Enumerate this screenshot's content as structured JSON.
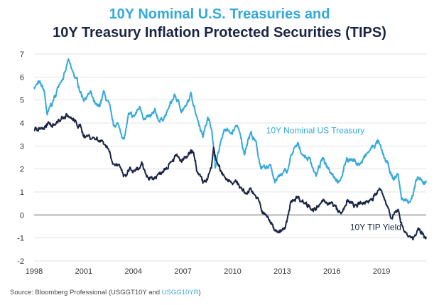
{
  "chart_data": {
    "type": "line",
    "title_line1": "10Y Nominal U.S. Treasuries and",
    "title_line2": "10Y Treasury Inflation Protected Securities (TIPS)",
    "xlim": [
      1998,
      2021.7
    ],
    "ylim": [
      -2,
      7
    ],
    "x_ticks": [
      "1998",
      "2001",
      "2004",
      "2007",
      "2010",
      "2013",
      "2016",
      "2019"
    ],
    "y_ticks": [
      "7",
      "6",
      "5",
      "4",
      "3",
      "2",
      "1",
      "0",
      "-1",
      "-2"
    ],
    "grid": "horizontal",
    "series": [
      {
        "name": "10Y Nominal US Treasury",
        "color": "#35a9dc",
        "points": [
          [
            1998.0,
            5.6
          ],
          [
            1998.3,
            5.7
          ],
          [
            1998.6,
            5.4
          ],
          [
            1998.8,
            4.3
          ],
          [
            1999.0,
            4.7
          ],
          [
            1999.3,
            5.2
          ],
          [
            1999.6,
            5.9
          ],
          [
            1999.9,
            6.2
          ],
          [
            2000.05,
            6.7
          ],
          [
            2000.3,
            6.2
          ],
          [
            2000.6,
            5.8
          ],
          [
            2000.9,
            5.2
          ],
          [
            2001.0,
            5.1
          ],
          [
            2001.4,
            5.3
          ],
          [
            2001.7,
            4.7
          ],
          [
            2001.9,
            4.6
          ],
          [
            2002.2,
            5.3
          ],
          [
            2002.5,
            4.8
          ],
          [
            2002.8,
            3.8
          ],
          [
            2003.0,
            4.0
          ],
          [
            2003.45,
            3.3
          ],
          [
            2003.7,
            4.3
          ],
          [
            2004.0,
            4.2
          ],
          [
            2004.4,
            4.7
          ],
          [
            2004.7,
            4.2
          ],
          [
            2005.0,
            4.2
          ],
          [
            2005.3,
            4.4
          ],
          [
            2005.6,
            4.1
          ],
          [
            2006.0,
            4.4
          ],
          [
            2006.5,
            5.2
          ],
          [
            2006.9,
            4.6
          ],
          [
            2007.2,
            4.7
          ],
          [
            2007.5,
            5.2
          ],
          [
            2007.9,
            4.2
          ],
          [
            2008.2,
            3.5
          ],
          [
            2008.5,
            4.2
          ],
          [
            2008.75,
            3.8
          ],
          [
            2008.95,
            2.1
          ],
          [
            2009.2,
            2.9
          ],
          [
            2009.5,
            3.8
          ],
          [
            2009.9,
            3.5
          ],
          [
            2010.3,
            3.9
          ],
          [
            2010.7,
            2.6
          ],
          [
            2010.9,
            3.3
          ],
          [
            2011.1,
            3.6
          ],
          [
            2011.4,
            3.1
          ],
          [
            2011.7,
            2.1
          ],
          [
            2012.0,
            1.9
          ],
          [
            2012.3,
            2.2
          ],
          [
            2012.55,
            1.5
          ],
          [
            2012.9,
            1.7
          ],
          [
            2013.3,
            1.9
          ],
          [
            2013.6,
            2.7
          ],
          [
            2013.95,
            3.0
          ],
          [
            2014.3,
            2.6
          ],
          [
            2014.7,
            2.4
          ],
          [
            2015.05,
            1.7
          ],
          [
            2015.4,
            2.4
          ],
          [
            2015.8,
            2.1
          ],
          [
            2016.1,
            1.8
          ],
          [
            2016.5,
            1.4
          ],
          [
            2016.9,
            2.5
          ],
          [
            2017.2,
            2.4
          ],
          [
            2017.7,
            2.2
          ],
          [
            2018.0,
            2.5
          ],
          [
            2018.4,
            2.9
          ],
          [
            2018.8,
            3.2
          ],
          [
            2019.0,
            2.7
          ],
          [
            2019.4,
            2.1
          ],
          [
            2019.7,
            1.5
          ],
          [
            2020.0,
            1.8
          ],
          [
            2020.2,
            0.7
          ],
          [
            2020.6,
            0.6
          ],
          [
            2020.9,
            0.9
          ],
          [
            2021.2,
            1.6
          ],
          [
            2021.5,
            1.3
          ],
          [
            2021.7,
            1.5
          ]
        ]
      },
      {
        "name": "10Y TIP Yield",
        "color": "#1a2444",
        "points": [
          [
            1998.0,
            3.7
          ],
          [
            1998.5,
            3.8
          ],
          [
            1999.0,
            3.9
          ],
          [
            1999.5,
            4.1
          ],
          [
            2000.0,
            4.35
          ],
          [
            2000.5,
            4.0
          ],
          [
            2000.8,
            3.8
          ],
          [
            2001.0,
            3.5
          ],
          [
            2001.4,
            3.4
          ],
          [
            2001.9,
            3.3
          ],
          [
            2002.2,
            3.2
          ],
          [
            2002.5,
            2.9
          ],
          [
            2002.8,
            2.3
          ],
          [
            2003.0,
            2.2
          ],
          [
            2003.5,
            1.6
          ],
          [
            2003.8,
            2.0
          ],
          [
            2004.1,
            1.8
          ],
          [
            2004.5,
            2.1
          ],
          [
            2004.8,
            1.7
          ],
          [
            2005.2,
            1.6
          ],
          [
            2005.6,
            1.8
          ],
          [
            2006.0,
            2.2
          ],
          [
            2006.5,
            2.6
          ],
          [
            2006.9,
            2.3
          ],
          [
            2007.3,
            2.5
          ],
          [
            2007.6,
            2.7
          ],
          [
            2007.9,
            1.8
          ],
          [
            2008.2,
            1.3
          ],
          [
            2008.5,
            1.6
          ],
          [
            2008.72,
            2.0
          ],
          [
            2008.85,
            2.9
          ],
          [
            2009.0,
            2.4
          ],
          [
            2009.3,
            1.8
          ],
          [
            2009.7,
            1.6
          ],
          [
            2010.0,
            1.5
          ],
          [
            2010.4,
            1.3
          ],
          [
            2010.8,
            0.9
          ],
          [
            2011.1,
            1.2
          ],
          [
            2011.5,
            0.7
          ],
          [
            2011.8,
            0.1
          ],
          [
            2012.2,
            -0.2
          ],
          [
            2012.5,
            -0.6
          ],
          [
            2012.9,
            -0.7
          ],
          [
            2013.2,
            -0.6
          ],
          [
            2013.55,
            0.6
          ],
          [
            2013.9,
            0.8
          ],
          [
            2014.3,
            0.6
          ],
          [
            2014.7,
            0.4
          ],
          [
            2015.0,
            0.2
          ],
          [
            2015.4,
            0.5
          ],
          [
            2015.8,
            0.6
          ],
          [
            2016.2,
            0.3
          ],
          [
            2016.6,
            0.0
          ],
          [
            2016.9,
            0.6
          ],
          [
            2017.3,
            0.4
          ],
          [
            2017.7,
            0.4
          ],
          [
            2018.1,
            0.6
          ],
          [
            2018.5,
            0.8
          ],
          [
            2018.9,
            1.1
          ],
          [
            2019.2,
            0.6
          ],
          [
            2019.6,
            0.0
          ],
          [
            2020.0,
            0.1
          ],
          [
            2020.2,
            -0.3
          ],
          [
            2020.5,
            -0.8
          ],
          [
            2020.9,
            -1.0
          ],
          [
            2021.2,
            -0.7
          ],
          [
            2021.5,
            -0.9
          ],
          [
            2021.7,
            -0.95
          ]
        ]
      }
    ],
    "annotations": [
      {
        "text": "10Y Nominal US Treasury",
        "x": 2015.0,
        "y": 3.55,
        "anchor": "middle",
        "series": 0
      },
      {
        "text": "10Y TIP Yield",
        "x": 2017.1,
        "y": -0.65,
        "anchor": "start",
        "series": 1
      }
    ]
  },
  "source": {
    "prefix": "Source: Bloomberg Professional (USGGT10Y and ",
    "highlight": "USGG10YR",
    "suffix": ")"
  }
}
